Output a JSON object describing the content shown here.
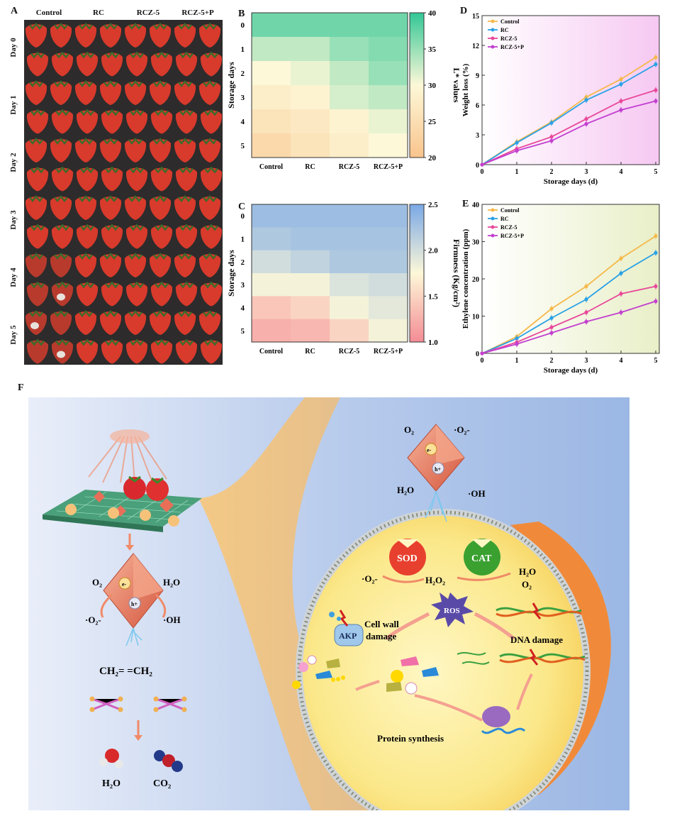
{
  "panel_labels": {
    "a": "A",
    "b": "B",
    "c": "C",
    "d": "D",
    "e": "E",
    "f": "F"
  },
  "photos": {
    "columns": [
      "Control",
      "RC",
      "RCZ-5",
      "RCZ-5+P"
    ],
    "rows": [
      "Day 0",
      "Day 1",
      "Day 2",
      "Day 3",
      "Day 4",
      "Day 5"
    ]
  },
  "chart_data": [
    {
      "type": "heatmap",
      "id": "B",
      "title": "",
      "xlabel": "",
      "ylabel": "Storage days",
      "x": [
        "Control",
        "RC",
        "RCZ-5",
        "RCZ-5+P"
      ],
      "y": [
        "0",
        "1",
        "2",
        "3",
        "4",
        "5"
      ],
      "values": [
        [
          37,
          37,
          37,
          37
        ],
        [
          33,
          33,
          35,
          36
        ],
        [
          30,
          31,
          33,
          35
        ],
        [
          28,
          29,
          32,
          33
        ],
        [
          26,
          27,
          29,
          31
        ],
        [
          24,
          26,
          28,
          30
        ]
      ],
      "colorbar": {
        "label": "L* values",
        "ticks": [
          "40",
          "35",
          "30",
          "25",
          "20"
        ],
        "range": [
          20,
          40
        ]
      },
      "colors": {
        "low": "#f9c48d",
        "mid": "#fdf8d8",
        "high": "#33c796"
      }
    },
    {
      "type": "heatmap",
      "id": "C",
      "title": "",
      "xlabel": "",
      "ylabel": "Storage days",
      "x": [
        "Control",
        "RC",
        "RCZ-5",
        "RCZ-5+P"
      ],
      "y": [
        "0",
        "1",
        "2",
        "3",
        "4",
        "5"
      ],
      "values": [
        [
          2.3,
          2.3,
          2.3,
          2.3
        ],
        [
          2.2,
          2.25,
          2.25,
          2.25
        ],
        [
          2.0,
          2.1,
          2.2,
          2.2
        ],
        [
          1.8,
          1.8,
          1.95,
          2.0
        ],
        [
          1.4,
          1.5,
          1.8,
          1.9
        ],
        [
          1.25,
          1.3,
          1.5,
          1.8
        ]
      ],
      "colorbar": {
        "label": "Firmness (Kg/cm²)",
        "ticks": [
          "2.5",
          "2.0",
          "1.5",
          "1.0"
        ],
        "range": [
          1.0,
          2.5
        ]
      },
      "colors": {
        "low": "#f48c95",
        "mid": "#fdf8d8",
        "high": "#7aa8e6"
      }
    },
    {
      "type": "line",
      "id": "D",
      "xlabel": "Storage days (d)",
      "ylabel": "Weight loss (%)",
      "x": [
        0,
        1,
        2,
        3,
        4,
        5
      ],
      "xticks": [
        "0",
        "1",
        "2",
        "3",
        "4",
        "5"
      ],
      "yticks": [
        "0",
        "3",
        "6",
        "9",
        "12",
        "15"
      ],
      "ylim": [
        0,
        15
      ],
      "series": [
        {
          "name": "Control",
          "values": [
            0,
            2.3,
            4.3,
            6.8,
            8.6,
            10.8
          ],
          "color": "#f5b94a"
        },
        {
          "name": "RC",
          "values": [
            0,
            2.2,
            4.2,
            6.5,
            8.1,
            10.1
          ],
          "color": "#2aa1e6"
        },
        {
          "name": "RCZ-5",
          "values": [
            0,
            1.6,
            2.8,
            4.6,
            6.4,
            7.5
          ],
          "color": "#e8489a"
        },
        {
          "name": "RCZ-5+P",
          "values": [
            0,
            1.4,
            2.4,
            4.1,
            5.5,
            6.4
          ],
          "color": "#c23fd0"
        }
      ]
    },
    {
      "type": "line",
      "id": "E",
      "xlabel": "Storage days (d)",
      "ylabel": "Ethylene concentration (ppm)",
      "x": [
        0,
        1,
        2,
        3,
        4,
        5
      ],
      "xticks": [
        "0",
        "1",
        "2",
        "3",
        "4",
        "5"
      ],
      "yticks": [
        "0",
        "10",
        "20",
        "30",
        "40"
      ],
      "ylim": [
        0,
        40
      ],
      "series": [
        {
          "name": "Control",
          "values": [
            0,
            4.5,
            12,
            18,
            25.5,
            31.5
          ],
          "color": "#f5b94a"
        },
        {
          "name": "RC",
          "values": [
            0,
            4,
            9.5,
            14.5,
            21.5,
            27
          ],
          "color": "#2aa1e6"
        },
        {
          "name": "RCZ-5",
          "values": [
            0,
            3,
            7,
            11,
            16,
            18
          ],
          "color": "#e8489a"
        },
        {
          "name": "RCZ-5+P",
          "values": [
            0,
            2.5,
            5.5,
            8.5,
            11,
            14
          ],
          "color": "#c23fd0"
        }
      ]
    }
  ],
  "scheme": {
    "o2_left": "O₂",
    "h2o_left": "H₂O",
    "superoxide_left": "·O₂-",
    "oh_left": "·OH",
    "eminus": "e-",
    "hplus": "h+",
    "ethylene": "CH₂=  =CH₂",
    "h2o_product": "H₂O",
    "co2_product": "CO₂",
    "o2_top": "O₂",
    "superoxide_top": "·O₂-",
    "h2o_top": "H₂O",
    "oh_top": "·OH",
    "sod": "SOD",
    "cat": "CAT",
    "superoxide_cell": "·O₂-",
    "h2o2": "H₂O₂",
    "h2o_cell": "H₂O",
    "o2_cell": "O₂",
    "ros": "ROS",
    "cell_wall": "Cell wall",
    "cell_wall2": "damage",
    "akp": "AKP",
    "dna": "DNA damage",
    "protein": "Protein synthesis"
  }
}
